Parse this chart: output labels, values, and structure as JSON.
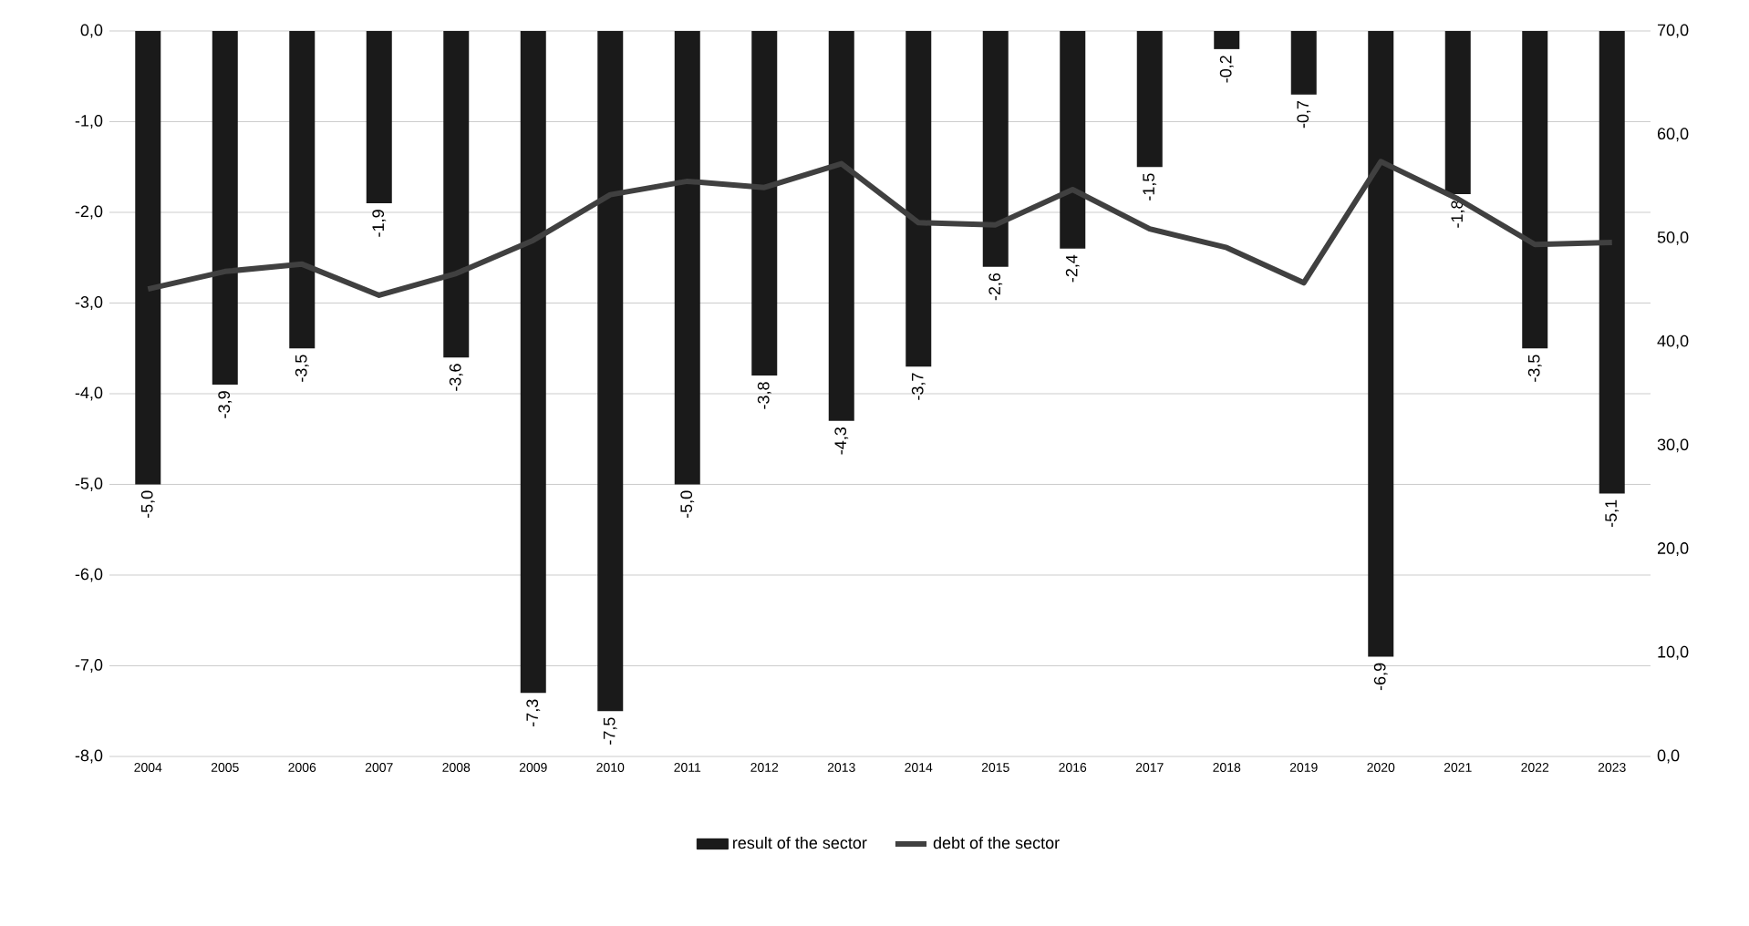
{
  "chart_data": {
    "type": "bar",
    "categories": [
      "2004",
      "2005",
      "2006",
      "2007",
      "2008",
      "2009",
      "2010",
      "2011",
      "2012",
      "2013",
      "2014",
      "2015",
      "2016",
      "2017",
      "2018",
      "2019",
      "2020",
      "2021",
      "2022",
      "2023"
    ],
    "series": [
      {
        "name": "result of the sector",
        "color": "#1a1a1a",
        "values": [
          -5.0,
          -3.9,
          -3.5,
          -1.9,
          -3.6,
          -7.3,
          -7.5,
          -5.0,
          -3.8,
          -4.3,
          -3.7,
          -2.6,
          -2.4,
          -1.5,
          -0.2,
          -0.7,
          -6.9,
          -1.8,
          -3.5,
          -5.1
        ],
        "value_labels": [
          "-5,0",
          "-3,9",
          "-3,5",
          "-1,9",
          "-3,6",
          "-7,3",
          "-7,5",
          "-5,0",
          "-3,8",
          "-4,3",
          "-3,7",
          "-2,6",
          "-2,4",
          "-1,5",
          "-0,2",
          "-0,7",
          "-6,9",
          "-1,8",
          "-3,5",
          "-5,1"
        ]
      },
      {
        "name": "debt of the sector",
        "type": "line",
        "axis": "y2",
        "color": "#404040",
        "values": [
          45.1,
          46.8,
          47.5,
          44.5,
          46.6,
          49.8,
          54.2,
          55.5,
          54.9,
          57.2,
          51.5,
          51.3,
          54.7,
          50.9,
          49.1,
          45.7,
          57.4,
          53.8,
          49.4,
          49.6
        ]
      }
    ],
    "ylim": [
      -8,
      0
    ],
    "yticks": [
      {
        "value": -8,
        "label": "-8,0"
      },
      {
        "value": -7,
        "label": "-7,0"
      },
      {
        "value": -6,
        "label": "-6,0"
      },
      {
        "value": -5,
        "label": "-5,0"
      },
      {
        "value": -4,
        "label": "-4,0"
      },
      {
        "value": -3,
        "label": "-3,0"
      },
      {
        "value": -2,
        "label": "-2,0"
      },
      {
        "value": -1,
        "label": "-1,0"
      },
      {
        "value": 0,
        "label": "0,0"
      }
    ],
    "y2lim": [
      0,
      70
    ],
    "y2ticks": [
      {
        "value": 0,
        "label": "0,0"
      },
      {
        "value": 10,
        "label": "10,0"
      },
      {
        "value": 20,
        "label": "20,0"
      },
      {
        "value": 30,
        "label": "30,0"
      },
      {
        "value": 40,
        "label": "40,0"
      },
      {
        "value": 50,
        "label": "50,0"
      },
      {
        "value": 60,
        "label": "60,0"
      },
      {
        "value": 70,
        "label": "70,0"
      }
    ],
    "grid": "y",
    "legend": "bottom"
  }
}
